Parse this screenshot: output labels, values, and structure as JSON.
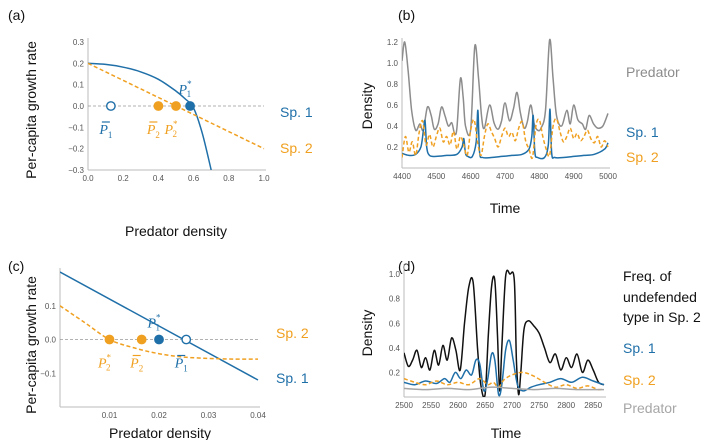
{
  "colors": {
    "sp1": "#1f6fa8",
    "sp2": "#f0a020",
    "predator_b": "#8c8c8c",
    "predator_d": "#a6a6a6",
    "freq": "#111111",
    "axis": "#bbbbbb",
    "zero": "#999999"
  },
  "chart_data": [
    {
      "id": "a",
      "type": "line",
      "panel_label": "(a)",
      "xlabel": "Predator density",
      "ylabel": "Per-capita growth rate",
      "xlim": [
        0,
        1
      ],
      "ylim": [
        -0.3,
        0.3
      ],
      "xticks": [
        "0.0",
        "0.2",
        "0.4",
        "0.6",
        "0.8",
        "1.0"
      ],
      "xtick_values": [
        0,
        0.2,
        0.4,
        0.6,
        0.8,
        1.0
      ],
      "yticks": [
        "−0.3",
        "−0.2",
        "−0.1",
        "0.0",
        "0.1",
        "0.2",
        "0.3"
      ],
      "ytick_values": [
        -0.3,
        -0.2,
        -0.1,
        0,
        0.1,
        0.2,
        0.3
      ],
      "series": [
        {
          "name": "Sp. 1",
          "color_key": "sp1",
          "style": "solid",
          "x": [
            0,
            0.1,
            0.2,
            0.3,
            0.4,
            0.5,
            0.55,
            0.6,
            0.65,
            0.7
          ],
          "y": [
            0.2,
            0.195,
            0.182,
            0.16,
            0.125,
            0.07,
            0.035,
            -0.01,
            -0.13,
            -0.3
          ]
        },
        {
          "name": "Sp. 2",
          "color_key": "sp2",
          "style": "dashed",
          "x": [
            0,
            1
          ],
          "y": [
            0.2,
            -0.2
          ]
        }
      ],
      "points": [
        {
          "label": "P̄₁",
          "x": 0.13,
          "y": 0,
          "filled": false,
          "color_key": "sp1"
        },
        {
          "label": "P̄₂",
          "x": 0.4,
          "y": 0,
          "filled": true,
          "color_key": "sp2"
        },
        {
          "label": "P₂*",
          "x": 0.5,
          "y": 0,
          "filled": true,
          "color_key": "sp2"
        },
        {
          "label": "P₁*",
          "x": 0.58,
          "y": 0,
          "filled": true,
          "color_key": "sp1"
        }
      ],
      "legend": [
        {
          "text": "Sp. 1",
          "color_key": "sp1"
        },
        {
          "text": "Sp. 2",
          "color_key": "sp2"
        }
      ]
    },
    {
      "id": "b",
      "type": "line",
      "panel_label": "(b)",
      "xlabel": "Time",
      "ylabel": "Density",
      "xlim": [
        4400,
        5000
      ],
      "ylim": [
        0,
        1.2
      ],
      "xticks": [
        "4400",
        "4500",
        "4600",
        "4700",
        "4800",
        "4900",
        "5000"
      ],
      "xtick_values": [
        4400,
        4500,
        4600,
        4700,
        4800,
        4900,
        5000
      ],
      "yticks": [
        "0.2",
        "0.4",
        "0.6",
        "0.8",
        "1.0",
        "1.2"
      ],
      "ytick_values": [
        0.2,
        0.4,
        0.6,
        0.8,
        1.0,
        1.2
      ],
      "series": [
        {
          "name": "Predator",
          "color_key": "predator_b",
          "style": "solid",
          "x": [
            4400,
            4408,
            4418,
            4428,
            4440,
            4452,
            4462,
            4474,
            4485,
            4494,
            4505,
            4515,
            4525,
            4535,
            4545,
            4553,
            4560,
            4570,
            4578,
            4585,
            4600,
            4612,
            4623,
            4632,
            4640,
            4655,
            4668,
            4680,
            4690,
            4700,
            4713,
            4725,
            4735,
            4745,
            4756,
            4765,
            4775,
            4785,
            4795,
            4805,
            4818,
            4830,
            4840,
            4850,
            4865,
            4880,
            4890,
            4900,
            4912,
            4925,
            4935,
            4945,
            4958,
            4970,
            4985,
            5000
          ],
          "y": [
            1.02,
            1.2,
            0.92,
            0.55,
            0.36,
            0.42,
            0.36,
            0.58,
            0.5,
            0.37,
            0.42,
            0.58,
            0.5,
            0.4,
            0.43,
            0.33,
            0.38,
            0.85,
            0.68,
            0.4,
            0.37,
            1.16,
            0.85,
            0.48,
            0.38,
            0.6,
            0.43,
            0.37,
            0.45,
            0.62,
            0.45,
            0.57,
            0.72,
            0.52,
            0.38,
            0.44,
            0.6,
            0.42,
            0.36,
            0.38,
            0.55,
            1.22,
            0.85,
            0.5,
            0.4,
            0.55,
            0.42,
            0.6,
            0.46,
            0.42,
            0.37,
            0.5,
            0.42,
            0.38,
            0.4,
            0.52
          ]
        },
        {
          "name": "Sp. 1",
          "color_key": "sp1",
          "style": "solid",
          "x": [
            4400,
            4420,
            4440,
            4455,
            4462,
            4467,
            4472,
            4480,
            4500,
            4530,
            4560,
            4575,
            4580,
            4585,
            4592,
            4605,
            4616,
            4621,
            4626,
            4635,
            4660,
            4690,
            4720,
            4750,
            4770,
            4778,
            4782,
            4787,
            4795,
            4815,
            4826,
            4831,
            4836,
            4845,
            4870,
            4900,
            4930,
            4960,
            4990,
            5000
          ],
          "y": [
            0.14,
            0.12,
            0.13,
            0.2,
            0.35,
            0.45,
            0.2,
            0.12,
            0.11,
            0.12,
            0.13,
            0.2,
            0.28,
            0.14,
            0.11,
            0.11,
            0.25,
            0.55,
            0.15,
            0.1,
            0.1,
            0.11,
            0.12,
            0.13,
            0.18,
            0.3,
            0.5,
            0.15,
            0.1,
            0.1,
            0.22,
            0.56,
            0.14,
            0.1,
            0.1,
            0.11,
            0.12,
            0.13,
            0.18,
            0.24
          ]
        },
        {
          "name": "Sp. 2",
          "color_key": "sp2",
          "style": "dashed",
          "x": [
            4400,
            4410,
            4420,
            4430,
            4440,
            4450,
            4460,
            4470,
            4480,
            4490,
            4500,
            4510,
            4520,
            4530,
            4540,
            4550,
            4560,
            4570,
            4580,
            4590,
            4600,
            4610,
            4620,
            4630,
            4640,
            4650,
            4660,
            4670,
            4680,
            4690,
            4700,
            4710,
            4720,
            4730,
            4740,
            4750,
            4760,
            4770,
            4780,
            4790,
            4800,
            4810,
            4820,
            4830,
            4840,
            4850,
            4860,
            4870,
            4880,
            4890,
            4900,
            4910,
            4920,
            4930,
            4940,
            4950,
            4960,
            4970,
            4980,
            4990,
            5000
          ],
          "y": [
            0.1,
            0.3,
            0.15,
            0.25,
            0.12,
            0.34,
            0.45,
            0.22,
            0.32,
            0.2,
            0.3,
            0.38,
            0.25,
            0.3,
            0.22,
            0.35,
            0.18,
            0.3,
            0.22,
            0.12,
            0.36,
            0.46,
            0.25,
            0.12,
            0.3,
            0.42,
            0.35,
            0.28,
            0.2,
            0.3,
            0.38,
            0.3,
            0.34,
            0.26,
            0.38,
            0.44,
            0.26,
            0.18,
            0.1,
            0.4,
            0.46,
            0.3,
            0.18,
            0.12,
            0.4,
            0.47,
            0.35,
            0.25,
            0.3,
            0.38,
            0.28,
            0.33,
            0.26,
            0.3,
            0.36,
            0.28,
            0.24,
            0.3,
            0.2,
            0.26,
            0.2
          ]
        }
      ],
      "legend": [
        {
          "text": "Predator",
          "color_key": "predator_b"
        },
        {
          "text": "Sp. 1",
          "color_key": "sp1"
        },
        {
          "text": "Sp. 2",
          "color_key": "sp2"
        }
      ]
    },
    {
      "id": "c",
      "type": "line",
      "panel_label": "(c)",
      "xlabel": "Predator density",
      "ylabel": "Per-capita growth rate",
      "xlim": [
        0,
        0.04
      ],
      "ylim": [
        -0.2,
        0.2
      ],
      "xticks": [
        "0.01",
        "0.02",
        "0.03",
        "0.04"
      ],
      "xtick_values": [
        0.01,
        0.02,
        0.03,
        0.04
      ],
      "yticks": [
        "−0.1",
        "0.0",
        "0.1"
      ],
      "ytick_values": [
        -0.1,
        0,
        0.1
      ],
      "series": [
        {
          "name": "Sp. 1",
          "color_key": "sp1",
          "style": "solid",
          "x": [
            0,
            0.04
          ],
          "y": [
            0.2,
            -0.12
          ]
        },
        {
          "name": "Sp. 2",
          "color_key": "sp2",
          "style": "dashed",
          "x": [
            0,
            0.005,
            0.01,
            0.015,
            0.02,
            0.025,
            0.03,
            0.035,
            0.04
          ],
          "y": [
            0.1,
            0.05,
            0.0,
            -0.025,
            -0.042,
            -0.052,
            -0.056,
            -0.058,
            -0.058
          ]
        }
      ],
      "points": [
        {
          "label": "P₂*",
          "x": 0.01,
          "y": 0,
          "filled": true,
          "color_key": "sp2"
        },
        {
          "label": "P̄₂",
          "x": 0.0165,
          "y": 0,
          "filled": true,
          "color_key": "sp2"
        },
        {
          "label": "P₁*",
          "x": 0.02,
          "y": 0,
          "filled": true,
          "color_key": "sp1"
        },
        {
          "label": "P̄₁",
          "x": 0.0255,
          "y": 0,
          "filled": false,
          "color_key": "sp1"
        }
      ],
      "legend": [
        {
          "text": "Sp. 2",
          "color_key": "sp2"
        },
        {
          "text": "Sp. 1",
          "color_key": "sp1"
        }
      ]
    },
    {
      "id": "d",
      "type": "line",
      "panel_label": "(d)",
      "xlabel": "Time",
      "ylabel": "Density",
      "xlim": [
        2500,
        2870
      ],
      "ylim": [
        0,
        1.05
      ],
      "xticks": [
        "2500",
        "2550",
        "2600",
        "2650",
        "2700",
        "2750",
        "2800",
        "2850"
      ],
      "xtick_values": [
        2500,
        2550,
        2600,
        2650,
        2700,
        2750,
        2800,
        2850
      ],
      "yticks": [
        "0.2",
        "0.4",
        "0.6",
        "0.8",
        "1.0"
      ],
      "ytick_values": [
        0.2,
        0.4,
        0.6,
        0.8,
        1.0
      ],
      "series": [
        {
          "name": "Freq. of undefended type in Sp. 2",
          "color_key": "freq",
          "style": "solid",
          "x": [
            2500,
            2508,
            2516,
            2524,
            2532,
            2540,
            2548,
            2556,
            2564,
            2572,
            2580,
            2588,
            2596,
            2604,
            2612,
            2620,
            2628,
            2636,
            2642,
            2650,
            2656,
            2662,
            2668,
            2673,
            2677,
            2681,
            2688,
            2696,
            2704,
            2708,
            2712,
            2716,
            2722,
            2730,
            2740,
            2750,
            2760,
            2770,
            2780,
            2790,
            2800,
            2810,
            2820,
            2830,
            2840,
            2850,
            2860,
            2870
          ],
          "y": [
            0.36,
            0.25,
            0.3,
            0.38,
            0.24,
            0.32,
            0.22,
            0.38,
            0.26,
            0.42,
            0.3,
            0.48,
            0.38,
            0.22,
            0.6,
            0.9,
            0.93,
            0.4,
            0.1,
            0.02,
            0.5,
            0.9,
            0.95,
            0.5,
            0.05,
            0.4,
            0.98,
            1.0,
            0.95,
            0.3,
            0.02,
            0.2,
            0.55,
            0.62,
            0.58,
            0.52,
            0.4,
            0.28,
            0.35,
            0.22,
            0.32,
            0.24,
            0.35,
            0.2,
            0.3,
            0.22,
            0.12,
            0.1
          ]
        },
        {
          "name": "Sp. 1",
          "color_key": "sp1",
          "style": "solid",
          "x": [
            2500,
            2520,
            2540,
            2560,
            2575,
            2585,
            2595,
            2605,
            2615,
            2625,
            2633,
            2640,
            2648,
            2655,
            2662,
            2668,
            2675,
            2681,
            2688,
            2695,
            2702,
            2710,
            2720,
            2735,
            2750,
            2770,
            2790,
            2810,
            2830,
            2850,
            2870
          ],
          "y": [
            0.12,
            0.1,
            0.13,
            0.11,
            0.15,
            0.12,
            0.2,
            0.15,
            0.22,
            0.18,
            0.3,
            0.27,
            0.05,
            0.15,
            0.35,
            0.3,
            0.02,
            0.1,
            0.38,
            0.46,
            0.3,
            0.1,
            0.05,
            0.08,
            0.1,
            0.12,
            0.15,
            0.12,
            0.16,
            0.13,
            0.1
          ]
        },
        {
          "name": "Sp. 2",
          "color_key": "sp2",
          "style": "dashed",
          "x": [
            2500,
            2520,
            2540,
            2560,
            2580,
            2600,
            2620,
            2640,
            2655,
            2665,
            2675,
            2685,
            2700,
            2720,
            2740,
            2760,
            2780,
            2800,
            2820,
            2840,
            2860,
            2870
          ],
          "y": [
            0.15,
            0.12,
            0.1,
            0.13,
            0.1,
            0.12,
            0.1,
            0.15,
            0.1,
            0.12,
            0.08,
            0.14,
            0.18,
            0.2,
            0.17,
            0.12,
            0.08,
            0.1,
            0.07,
            0.09,
            0.06,
            0.07
          ]
        },
        {
          "name": "Predator",
          "color_key": "predator_d",
          "style": "solid",
          "x": [
            2500,
            2540,
            2580,
            2620,
            2660,
            2700,
            2740,
            2780,
            2820,
            2870
          ],
          "y": [
            0.07,
            0.06,
            0.07,
            0.06,
            0.08,
            0.07,
            0.06,
            0.07,
            0.06,
            0.06
          ]
        }
      ],
      "legend": [
        {
          "text": "Freq. of",
          "color_key": "freq"
        },
        {
          "text": "undefended",
          "color_key": "freq"
        },
        {
          "text": "type in Sp. 2",
          "color_key": "freq"
        },
        {
          "text": "Sp. 1",
          "color_key": "sp1"
        },
        {
          "text": "Sp. 2",
          "color_key": "sp2"
        },
        {
          "text": "Predator",
          "color_key": "predator_d"
        }
      ]
    }
  ]
}
